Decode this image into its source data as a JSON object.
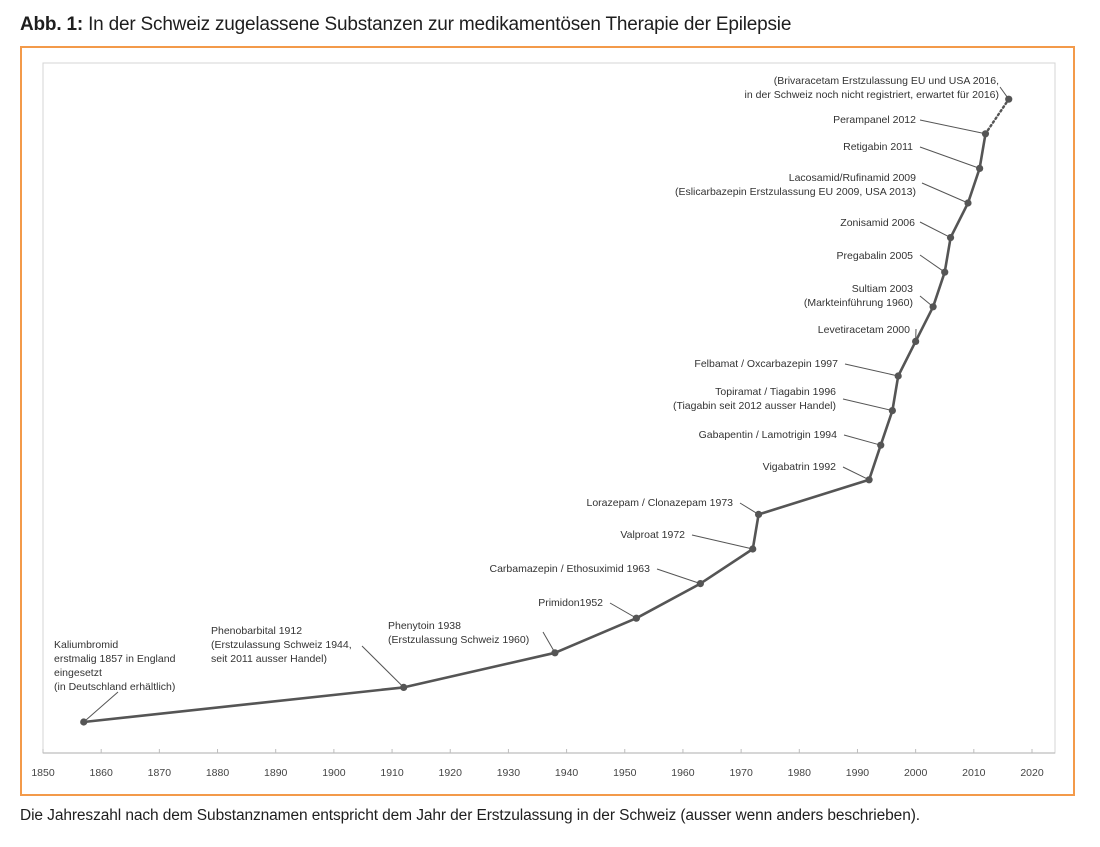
{
  "figure": {
    "title_prefix": "Abb. 1:",
    "title_text": " In der Schweiz zugelassene Substanzen zur medikamentösen Therapie der Epilepsie",
    "caption": "Die Jahreszahl nach dem Substanznamen entspricht dem Jahr der Erstzulassung in der Schweiz (ausser wenn anders beschrieben).",
    "frame_color": "#f39a4a",
    "line_color": "#555555"
  },
  "chart_data": {
    "type": "line",
    "title": "In der Schweiz zugelassene Substanzen zur medikamentösen Therapie der Epilepsie",
    "xlabel": "",
    "ylabel": "",
    "xlim": [
      1850,
      2020
    ],
    "x_ticks": [
      1850,
      1860,
      1870,
      1880,
      1890,
      1900,
      1910,
      1920,
      1930,
      1940,
      1950,
      1960,
      1970,
      1980,
      1990,
      2000,
      2010,
      2020
    ],
    "y_axis": "ordinal rank (unlabeled)",
    "grid": false,
    "legend": "none",
    "points": [
      {
        "x": 1857,
        "y": 0,
        "label": [
          "Kaliumbromid",
          "erstmalig 1857 in England",
          "eingesetzt",
          "(in Deutschland erhältlich)"
        ],
        "align": "left"
      },
      {
        "x": 1912,
        "y": 1,
        "label": [
          "Phenobarbital  1912",
          "(Erstzulassung Schweiz 1944,",
          "seit 2011 ausser Handel)"
        ],
        "align": "left"
      },
      {
        "x": 1938,
        "y": 2,
        "label": [
          "Phenytoin  1938",
          "(Erstzulassung Schweiz 1960)"
        ],
        "align": "left"
      },
      {
        "x": 1952,
        "y": 3,
        "label": [
          "Primidon1952"
        ],
        "align": "right"
      },
      {
        "x": 1963,
        "y": 4,
        "label": [
          "Carbamazepin / Ethosuximid  1963"
        ],
        "align": "right"
      },
      {
        "x": 1972,
        "y": 5,
        "label": [
          "Valproat 1972"
        ],
        "align": "right"
      },
      {
        "x": 1973,
        "y": 6,
        "label": [
          "Lorazepam / Clonazepam 1973"
        ],
        "align": "right"
      },
      {
        "x": 1992,
        "y": 7,
        "label": [
          "Vigabatrin 1992"
        ],
        "align": "right"
      },
      {
        "x": 1994,
        "y": 8,
        "label": [
          "Gabapentin  / Lamotrigin  1994"
        ],
        "align": "right"
      },
      {
        "x": 1996,
        "y": 9,
        "label": [
          "Topiramat / Tiagabin 1996",
          "(Tiagabin seit 2012 ausser Handel)"
        ],
        "align": "right"
      },
      {
        "x": 1997,
        "y": 10,
        "label": [
          "Felbamat / Oxcarbazepin  1997"
        ],
        "align": "right"
      },
      {
        "x": 2000,
        "y": 11,
        "label": [
          "Levetiracetam 2000"
        ],
        "align": "right"
      },
      {
        "x": 2003,
        "y": 12,
        "label": [
          "Sultiam  2003",
          "(Markteinführung  1960)"
        ],
        "align": "right"
      },
      {
        "x": 2005,
        "y": 13,
        "label": [
          "Pregabalin 2005"
        ],
        "align": "right"
      },
      {
        "x": 2006,
        "y": 14,
        "label": [
          "Zonisamid 2006"
        ],
        "align": "right"
      },
      {
        "x": 2009,
        "y": 15,
        "label": [
          "Lacosamid/Rufinamid  2009",
          "(Eslicarbazepin  Erstzulassung  EU 2009, USA 2013)"
        ],
        "align": "right"
      },
      {
        "x": 2011,
        "y": 16,
        "label": [
          "Retigabin  2011"
        ],
        "align": "right"
      },
      {
        "x": 2012,
        "y": 17,
        "label": [
          "Perampanel 2012"
        ],
        "align": "right"
      },
      {
        "x": 2016,
        "y": 18,
        "label": [
          "(Brivaracetam Erstzulassung  EU und USA 2016,",
          "in der Schweiz noch nicht registriert, erwartet für 2016)"
        ],
        "align": "right",
        "projected": true
      }
    ]
  }
}
